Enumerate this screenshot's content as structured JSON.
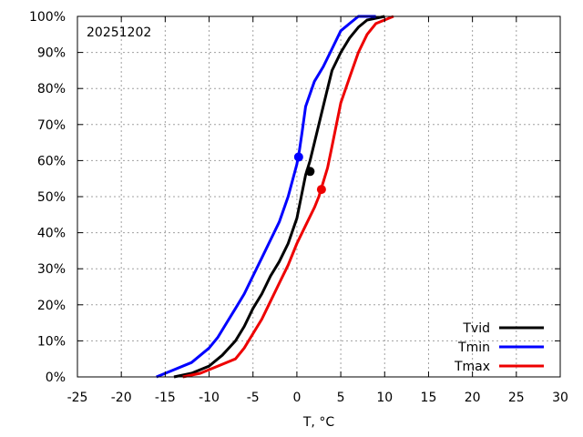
{
  "chart_data": {
    "type": "line",
    "annotation": "20251202",
    "xlabel": "T, °C",
    "ylabel": "",
    "xlim": [
      -25,
      30
    ],
    "ylim": [
      0,
      100
    ],
    "x_ticks": [
      "-25",
      "-20",
      "-15",
      "-10",
      "-5",
      "0",
      "5",
      "10",
      "15",
      "20",
      "25",
      "30"
    ],
    "y_ticks": [
      "0%",
      "10%",
      "20%",
      "30%",
      "40%",
      "50%",
      "60%",
      "70%",
      "80%",
      "90%",
      "100%"
    ],
    "grid": true,
    "legend_position": "bottom-right",
    "series": [
      {
        "name": "Tvid",
        "color": "#000000",
        "x": [
          -14,
          -12,
          -10,
          -8.5,
          -7,
          -6,
          -5,
          -4,
          -3,
          -2,
          -1,
          0,
          0.5,
          1,
          1.5,
          2,
          2.5,
          3,
          3.5,
          4,
          5,
          6,
          7,
          8,
          10
        ],
        "y": [
          0,
          1,
          3,
          6,
          10,
          14,
          19,
          23,
          28,
          32,
          37,
          44,
          50,
          56,
          60,
          65,
          70,
          75,
          80,
          85,
          90,
          94,
          97,
          99,
          100
        ],
        "marker": {
          "x": 1.5,
          "y": 57
        }
      },
      {
        "name": "Tmin",
        "color": "#0000ff",
        "x": [
          -16,
          -14,
          -12,
          -10,
          -9,
          -8,
          -7,
          -6,
          -5,
          -4,
          -3,
          -2,
          -1,
          0,
          0.3,
          0.6,
          1,
          2,
          3,
          4,
          5,
          6,
          7,
          9
        ],
        "y": [
          0,
          2,
          4,
          8,
          11,
          15,
          19,
          23,
          28,
          33,
          38,
          43,
          50,
          59,
          63,
          68,
          75,
          82,
          86,
          91,
          96,
          98,
          100,
          100
        ],
        "marker": {
          "x": 0.2,
          "y": 61
        }
      },
      {
        "name": "Tmax",
        "color": "#ee0000",
        "x": [
          -13,
          -11,
          -9,
          -7,
          -6,
          -5,
          -4,
          -3,
          -2,
          -1,
          0,
          1,
          2,
          2.5,
          3,
          3.5,
          4,
          4.5,
          5,
          6,
          7,
          8,
          9,
          11
        ],
        "y": [
          0,
          1,
          3,
          5,
          8,
          12,
          16,
          21,
          26,
          31,
          37,
          42,
          47,
          50,
          54,
          58,
          64,
          70,
          76,
          83,
          90,
          95,
          98,
          100
        ],
        "marker": {
          "x": 2.8,
          "y": 52
        }
      }
    ]
  }
}
